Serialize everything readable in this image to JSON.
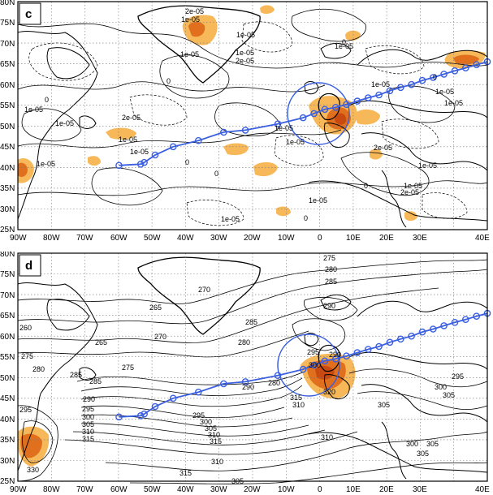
{
  "panels": [
    {
      "letter": "c",
      "y_ticks": [
        "80N",
        "75N",
        "70N",
        "65N",
        "60N",
        "55N",
        "50N",
        "45N",
        "40N",
        "35N",
        "30N",
        "25N"
      ],
      "x_ticks": [
        "90W",
        "80W",
        "70W",
        "60W",
        "50W",
        "40W",
        "30W",
        "20W",
        "10W",
        "0",
        "10E",
        "20E",
        "30E",
        "40E"
      ],
      "contour_labels": [
        {
          "text": "1e-05"
        },
        {
          "text": "2e-05"
        },
        {
          "text": "1e-05"
        },
        {
          "text": "1e-05"
        },
        {
          "text": "1e-05"
        },
        {
          "text": "2e-05"
        },
        {
          "text": "0"
        },
        {
          "text": "0"
        },
        {
          "text": "1e-05"
        },
        {
          "text": "2e-05"
        },
        {
          "text": "1e-05"
        },
        {
          "text": "1e-05"
        },
        {
          "text": "0"
        },
        {
          "text": "0"
        },
        {
          "text": "1e-05"
        },
        {
          "text": "1e-05"
        },
        {
          "text": "1e-05"
        },
        {
          "text": "1e-05"
        },
        {
          "text": "2e-05"
        },
        {
          "text": "1e-05"
        },
        {
          "text": "0"
        },
        {
          "text": "1e-05"
        },
        {
          "text": "0"
        },
        {
          "text": "1e-05"
        },
        {
          "text": "1e-05"
        },
        {
          "text": "2e-05"
        },
        {
          "text": "1e-05"
        },
        {
          "text": "0"
        },
        {
          "text": "0"
        },
        {
          "text": "1e-05"
        },
        {
          "text": "1e-05"
        },
        {
          "text": "1e-05"
        }
      ]
    },
    {
      "letter": "d",
      "y_ticks": [
        "80N",
        "75N",
        "70N",
        "65N",
        "60N",
        "55N",
        "50N",
        "45N",
        "40N",
        "35N",
        "30N",
        "25N"
      ],
      "x_ticks": [
        "90W",
        "80W",
        "70W",
        "60W",
        "50W",
        "40W",
        "30W",
        "20W",
        "10W",
        "0",
        "10E",
        "20E",
        "30E",
        "40E"
      ],
      "contour_labels": [
        {
          "text": "275"
        },
        {
          "text": "280"
        },
        {
          "text": "285"
        },
        {
          "text": "270"
        },
        {
          "text": "265"
        },
        {
          "text": "260"
        },
        {
          "text": "265"
        },
        {
          "text": "270"
        },
        {
          "text": "290"
        },
        {
          "text": "275"
        },
        {
          "text": "280"
        },
        {
          "text": "285"
        },
        {
          "text": "275"
        },
        {
          "text": "280"
        },
        {
          "text": "285"
        },
        {
          "text": "290"
        },
        {
          "text": "295"
        },
        {
          "text": "300"
        },
        {
          "text": "305"
        },
        {
          "text": "310"
        },
        {
          "text": "315"
        },
        {
          "text": "285"
        },
        {
          "text": "290"
        },
        {
          "text": "295"
        },
        {
          "text": "300"
        },
        {
          "text": "305"
        },
        {
          "text": "310"
        },
        {
          "text": "315"
        },
        {
          "text": "280"
        },
        {
          "text": "290"
        },
        {
          "text": "295"
        },
        {
          "text": "300"
        },
        {
          "text": "310"
        },
        {
          "text": "315"
        },
        {
          "text": "320"
        },
        {
          "text": "305"
        },
        {
          "text": "295"
        },
        {
          "text": "300"
        },
        {
          "text": "305"
        },
        {
          "text": "310"
        },
        {
          "text": "315"
        },
        {
          "text": "330"
        },
        {
          "text": "295"
        },
        {
          "text": "305"
        },
        {
          "text": "310"
        },
        {
          "text": "300"
        },
        {
          "text": "305"
        },
        {
          "text": "305"
        }
      ]
    }
  ],
  "colors": {
    "shade_light": "#f7b85a",
    "shade_dark": "#e0701e",
    "shade_core": "#c94a10",
    "track": "#3a5fe0",
    "contour": "#000000",
    "grid": "#777777"
  },
  "track": {
    "points": [
      {
        "lon": -62,
        "lat": 40.5
      },
      {
        "lon": -56,
        "lat": 40.8
      },
      {
        "lon": -55,
        "lat": 41.2
      },
      {
        "lon": -52,
        "lat": 43
      },
      {
        "lon": -47,
        "lat": 45
      },
      {
        "lon": -40,
        "lat": 46.5
      },
      {
        "lon": -33,
        "lat": 48.5
      },
      {
        "lon": -27,
        "lat": 49
      },
      {
        "lon": -18,
        "lat": 50.5
      },
      {
        "lon": -11,
        "lat": 52
      },
      {
        "lon": -8,
        "lat": 53
      },
      {
        "lon": -5,
        "lat": 54
      },
      {
        "lon": -2,
        "lat": 54.5
      },
      {
        "lon": 1,
        "lat": 55.2
      },
      {
        "lon": 4,
        "lat": 56
      },
      {
        "lon": 7,
        "lat": 56.8
      },
      {
        "lon": 10,
        "lat": 57.5
      },
      {
        "lon": 13,
        "lat": 58.5
      },
      {
        "lon": 16,
        "lat": 59.3
      },
      {
        "lon": 19,
        "lat": 60
      },
      {
        "lon": 22,
        "lat": 61
      },
      {
        "lon": 25,
        "lat": 61.7
      },
      {
        "lon": 28,
        "lat": 62.5
      },
      {
        "lon": 31,
        "lat": 63.3
      },
      {
        "lon": 34,
        "lat": 64
      },
      {
        "lon": 37,
        "lat": 64.8
      },
      {
        "lon": 40,
        "lat": 65.5
      }
    ]
  }
}
